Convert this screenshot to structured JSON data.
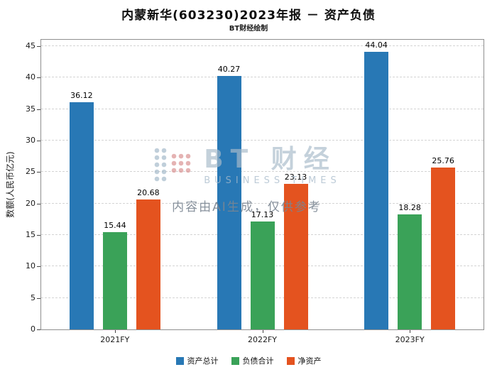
{
  "title": "内蒙新华(603230)2023年报 － 资产负债",
  "subtitle": "BT财经绘制",
  "watermark": {
    "brand_cn": "BT 财经",
    "brand_en": "BUSINESS TIMES",
    "disclaimer": "内容由AI生成，仅供参考"
  },
  "chart_data": {
    "type": "bar",
    "title": "内蒙新华(603230)2023年报 － 资产负债",
    "subtitle": "BT财经绘制",
    "categories": [
      "2021FY",
      "2022FY",
      "2023FY"
    ],
    "series": [
      {
        "name": "资产总计",
        "color": "#2878b5",
        "values": [
          36.12,
          40.27,
          44.04
        ]
      },
      {
        "name": "负债合计",
        "color": "#3aa258",
        "values": [
          15.44,
          17.13,
          18.28
        ]
      },
      {
        "name": "净资产",
        "color": "#e4531f",
        "values": [
          20.68,
          23.13,
          25.76
        ]
      }
    ],
    "xlabel": "",
    "ylabel": "数额(人民币亿元)",
    "ylim": [
      0,
      46
    ],
    "ytick_step": 5,
    "ytick_max": 45,
    "grid": true,
    "legend_position": "bottom"
  }
}
